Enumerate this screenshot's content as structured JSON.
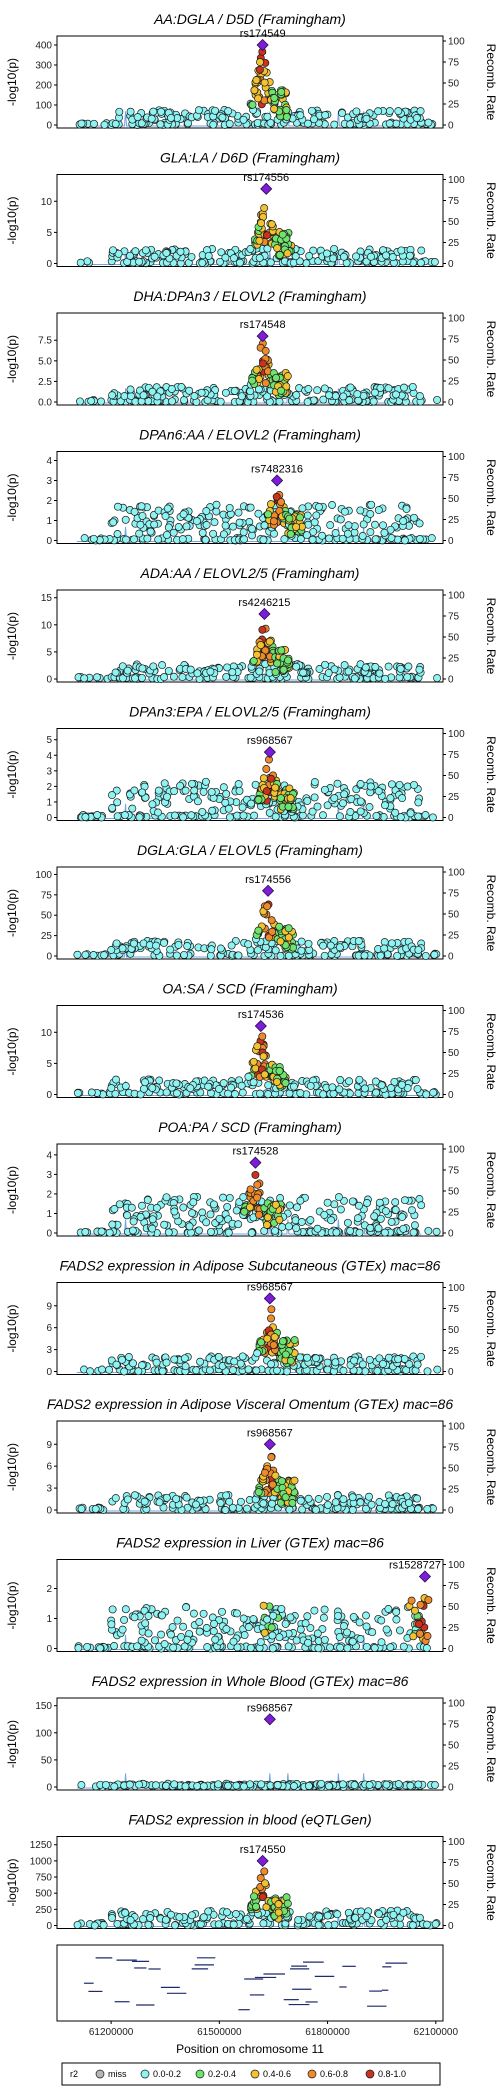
{
  "colors": {
    "miss": "#b5b5b5",
    "r0": "#8ef3f3",
    "r1": "#6ee46e",
    "r2": "#f2c230",
    "r3": "#ef8a2b",
    "r4": "#c8321e",
    "lead": "#7d1ed6",
    "recomb": "#6ea6e6",
    "frame": "#000000"
  },
  "layout_note": "",
  "x_axis": {
    "label": "Position on chromosome 11",
    "range": [
      61050000,
      62120000
    ],
    "ticks": [
      61200000,
      61500000,
      61800000,
      62100000
    ],
    "tick_labels": [
      "61200000",
      "61500000",
      "61800000",
      "62100000"
    ]
  },
  "recomb_axis": {
    "label": "Recomb. Rate",
    "ticks": [
      0,
      25,
      50,
      75,
      100
    ],
    "tick_labels": [
      "0",
      "25",
      "50",
      "75",
      "100"
    ]
  },
  "legend": {
    "title": "r2",
    "items": [
      {
        "label": "miss",
        "color_key": "miss"
      },
      {
        "label": "0.0-0.2",
        "color_key": "r0"
      },
      {
        "label": "0.2-0.4",
        "color_key": "r1"
      },
      {
        "label": "0.4-0.6",
        "color_key": "r2"
      },
      {
        "label": "0.6-0.8",
        "color_key": "r3"
      },
      {
        "label": "0.8-1.0",
        "color_key": "r4"
      }
    ]
  },
  "chart_data": [
    {
      "type": "scatter",
      "title": "AA:DGLA / D5D (Framingham)",
      "ylabel": "-log10(p)",
      "y_ticks": [
        0,
        100,
        200,
        300,
        400
      ],
      "ylim": [
        0,
        420
      ],
      "lead_snp": "rs174549",
      "lead_x": 61620000,
      "lead_value": 400,
      "scale": 1.0,
      "shape": "broad"
    },
    {
      "type": "scatter",
      "title": "GLA:LA / D6D (Framingham)",
      "ylabel": "-log10(p)",
      "y_ticks": [
        0,
        5,
        10
      ],
      "ylim": [
        0,
        13.5
      ],
      "lead_snp": "rs174556",
      "lead_x": 61630000,
      "lead_value": 12,
      "scale": 1.0,
      "shape": "broad"
    },
    {
      "type": "scatter",
      "title": "DHA:DPAn3 / ELOVL2 (Framingham)",
      "ylabel": "-log10(p)",
      "y_ticks": [
        0.0,
        2.5,
        5.0,
        7.5
      ],
      "y_tick_labels": [
        "0.0",
        "2.5",
        "5.0",
        "7.5"
      ],
      "ylim": [
        0,
        10.2
      ],
      "lead_snp": "rs174548",
      "lead_x": 61620000,
      "lead_value": 8,
      "scale": 1.0,
      "shape": "mid"
    },
    {
      "type": "scatter",
      "title": "DPAn6:AA / ELOVL2 (Framingham)",
      "ylabel": "-log10(p)",
      "y_ticks": [
        0,
        1,
        2,
        3,
        4
      ],
      "ylim": [
        0,
        4.2
      ],
      "lead_snp": "rs7482316",
      "lead_x": 61660000,
      "lead_value": 3.0,
      "scale": 1.0,
      "shape": "flat"
    },
    {
      "type": "scatter",
      "title": "ADA:AA / ELOVL2/5 (Framingham)",
      "ylabel": "-log10(p)",
      "y_ticks": [
        0,
        5,
        10,
        15
      ],
      "ylim": [
        0,
        15.5
      ],
      "lead_snp": "rs4246215",
      "lead_x": 61625000,
      "lead_value": 12,
      "scale": 1.0,
      "shape": "mid"
    },
    {
      "type": "scatter",
      "title": "DPAn3:EPA / ELOVL2/5 (Framingham)",
      "ylabel": "-log10(p)",
      "y_ticks": [
        0,
        1,
        2,
        3,
        4,
        5
      ],
      "ylim": [
        0,
        5.4
      ],
      "lead_snp": "rs968567",
      "lead_x": 61640000,
      "lead_value": 4.2,
      "scale": 1.0,
      "shape": "flat"
    },
    {
      "type": "scatter",
      "title": "DGLA:GLA / ELOVL5 (Framingham)",
      "ylabel": "-log10(p)",
      "y_ticks": [
        0,
        25,
        50,
        75,
        100
      ],
      "ylim": [
        0,
        103
      ],
      "lead_snp": "rs174556",
      "lead_x": 61635000,
      "lead_value": 80,
      "scale": 1.0,
      "shape": "sparse"
    },
    {
      "type": "scatter",
      "title": "OA:SA / SCD (Framingham)",
      "ylabel": "-log10(p)",
      "y_ticks": [
        0,
        5,
        10
      ],
      "ylim": [
        0,
        13.5
      ],
      "lead_snp": "rs174536",
      "lead_x": 61615000,
      "lead_value": 11,
      "scale": 1.0,
      "shape": "broad"
    },
    {
      "type": "scatter",
      "title": "POA:PA / SCD (Framingham)",
      "ylabel": "-log10(p)",
      "y_ticks": [
        0,
        1,
        2,
        3,
        4
      ],
      "ylim": [
        0,
        4.3
      ],
      "lead_snp": "rs174528",
      "lead_x": 61600000,
      "lead_value": 3.6,
      "scale": 1.0,
      "shape": "flat"
    },
    {
      "type": "scatter",
      "title": "FADS2 expression in Adipose Subcutaneous (GTEx) mac=86",
      "ylabel": "-log10(p)",
      "y_ticks": [
        0,
        3,
        6,
        9
      ],
      "ylim": [
        0,
        11.5
      ],
      "lead_snp": "rs968567",
      "lead_x": 61640000,
      "lead_value": 10,
      "scale": 1.0,
      "shape": "mid"
    },
    {
      "type": "scatter",
      "title": "FADS2 expression in Adipose Visceral Omentum (GTEx) mac=86",
      "ylabel": "-log10(p)",
      "y_ticks": [
        0,
        3,
        6,
        9
      ],
      "ylim": [
        0,
        11.5
      ],
      "lead_snp": "rs968567",
      "lead_x": 61640000,
      "lead_value": 9,
      "scale": 1.0,
      "shape": "mid"
    },
    {
      "type": "scatter",
      "title": "FADS2 expression in Liver (GTEx) mac=86",
      "ylabel": "-log10(p)",
      "y_ticks": [
        0,
        1,
        2
      ],
      "ylim": [
        0,
        2.8
      ],
      "lead_snp": "rs1528727",
      "lead_x": 62070000,
      "lead_value": 2.4,
      "scale": 1.0,
      "shape": "liver"
    },
    {
      "type": "scatter",
      "title": "FADS2 expression in Whole Blood (GTEx) mac=86",
      "ylabel": "-log10(p)",
      "y_ticks": [
        0,
        50,
        100,
        150
      ],
      "ylim": [
        0,
        155
      ],
      "lead_snp": "rs968567",
      "lead_x": 61640000,
      "lead_value": 125,
      "scale": 1.0,
      "shape": "single"
    },
    {
      "type": "scatter",
      "title": "FADS2 expression in blood (eQTLGen)",
      "ylabel": "-log10(p)",
      "y_ticks": [
        0,
        250,
        500,
        750,
        1000,
        1250
      ],
      "ylim": [
        0,
        1300
      ],
      "lead_snp": "rs174550",
      "lead_x": 61620000,
      "lead_value": 1000,
      "scale": 1.0,
      "shape": "broad"
    }
  ]
}
